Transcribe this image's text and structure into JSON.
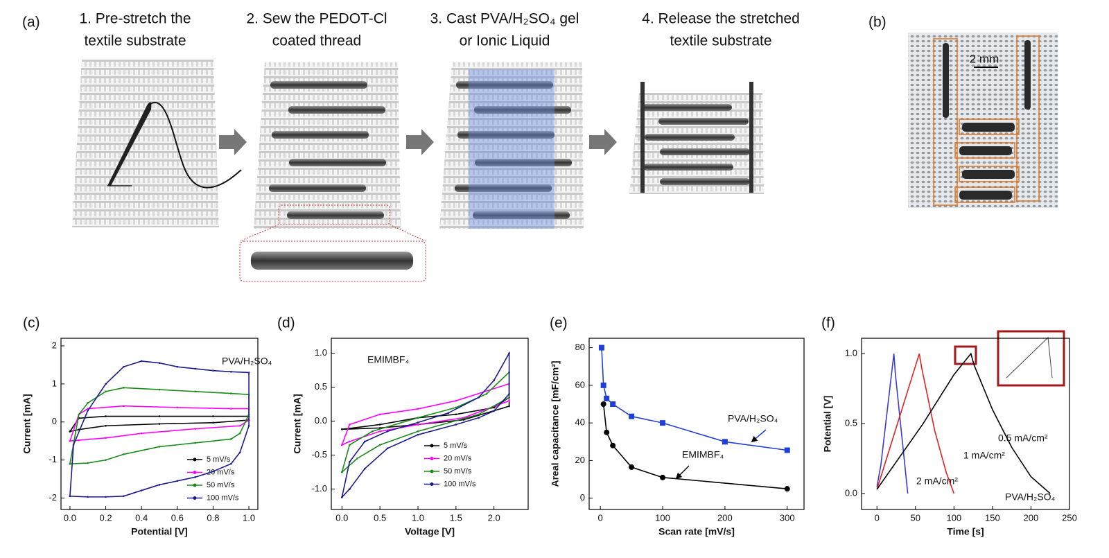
{
  "panel_labels": [
    "(a)",
    "(b)",
    "(c)",
    "(d)",
    "(e)",
    "(f)"
  ],
  "steps": [
    {
      "lines": [
        "1. Pre-stretch the",
        "textile substrate"
      ]
    },
    {
      "lines": [
        "2. Sew the PEDOT-Cl",
        "coated thread"
      ]
    },
    {
      "lines": [
        "3. Cast PVA/H₂SO₄ gel",
        "or Ionic Liquid"
      ]
    },
    {
      "lines": [
        "4. Release the stretched",
        "textile substrate"
      ]
    }
  ],
  "scale_bar": "2 mm",
  "chart_data": [
    {
      "type": "line",
      "xlabel": "Potential [V]",
      "ylabel": "Current [mA]",
      "annotation": "PVA/H₂SO₄",
      "legend": "lower right",
      "xlim": [
        -0.05,
        1.05
      ],
      "ylim": [
        -2.3,
        2.2
      ],
      "xticks": [
        {
          "value": 0,
          "label": "0.0"
        },
        {
          "value": 0.2,
          "label": "0.2"
        },
        {
          "value": 0.4,
          "label": "0.4"
        },
        {
          "value": 0.6,
          "label": "0.6"
        },
        {
          "value": 0.8,
          "label": "0.8"
        },
        {
          "value": 1,
          "label": "1.0"
        }
      ],
      "yticks": [
        -2,
        -1,
        0,
        1,
        2
      ],
      "series": [
        {
          "name": "5 mV/s",
          "color": "#000000",
          "marker": "dot",
          "x": [
            0,
            0.05,
            0.2,
            0.5,
            0.8,
            1.0,
            1.0,
            0.8,
            0.5,
            0.2,
            0.05,
            0
          ],
          "values": [
            -0.25,
            0.1,
            0.15,
            0.15,
            0.15,
            0.15,
            0.05,
            -0.02,
            -0.05,
            -0.1,
            -0.2,
            -0.25
          ]
        },
        {
          "name": "20 mV/s",
          "color": "#ff00ff",
          "marker": "dot",
          "x": [
            0,
            0.05,
            0.1,
            0.3,
            0.6,
            0.9,
            1.0,
            1.0,
            0.95,
            0.7,
            0.4,
            0.2,
            0.05,
            0
          ],
          "values": [
            -0.5,
            0.2,
            0.35,
            0.42,
            0.38,
            0.35,
            0.35,
            0.05,
            -0.1,
            -0.18,
            -0.3,
            -0.42,
            -0.48,
            -0.5
          ]
        },
        {
          "name": "50 mV/s",
          "color": "#1a8a1a",
          "marker": "dot",
          "x": [
            0,
            0.05,
            0.1,
            0.2,
            0.3,
            0.5,
            0.7,
            0.9,
            1.0,
            1.0,
            0.95,
            0.9,
            0.7,
            0.5,
            0.3,
            0.2,
            0.1,
            0
          ],
          "values": [
            -1.1,
            0.2,
            0.5,
            0.8,
            0.9,
            0.85,
            0.8,
            0.75,
            0.72,
            0.2,
            -0.3,
            -0.45,
            -0.55,
            -0.65,
            -0.85,
            -1.0,
            -1.08,
            -1.1
          ]
        },
        {
          "name": "100 mV/s",
          "color": "#1a1a8c",
          "marker": "dot",
          "x": [
            0,
            0.02,
            0.1,
            0.2,
            0.3,
            0.4,
            0.5,
            0.6,
            0.7,
            0.8,
            0.9,
            1.0,
            1.0,
            0.95,
            0.9,
            0.8,
            0.7,
            0.6,
            0.5,
            0.4,
            0.3,
            0.2,
            0.1,
            0
          ],
          "values": [
            -1.95,
            -0.6,
            0.3,
            1.0,
            1.45,
            1.6,
            1.55,
            1.45,
            1.4,
            1.35,
            1.32,
            1.3,
            -0.1,
            -0.8,
            -1.1,
            -1.3,
            -1.45,
            -1.55,
            -1.65,
            -1.8,
            -1.95,
            -1.97,
            -1.97,
            -1.95
          ]
        }
      ]
    },
    {
      "type": "line",
      "xlabel": "Voltage [V]",
      "ylabel": "Current [mA]",
      "annotation": "EMIMBF₄",
      "legend": "lower right",
      "xlim": [
        -0.14,
        2.45
      ],
      "ylim": [
        -1.3,
        1.22
      ],
      "xticks": [
        {
          "value": 0,
          "label": "0.0"
        },
        {
          "value": 0.5,
          "label": "0.5"
        },
        {
          "value": 1,
          "label": "1.0"
        },
        {
          "value": 1.5,
          "label": "1.5"
        },
        {
          "value": 2,
          "label": "2.0"
        }
      ],
      "yticks": [
        {
          "value": -1,
          "label": "-1.0"
        },
        {
          "value": -0.5,
          "label": "-0.5"
        },
        {
          "value": 0,
          "label": "0.0"
        },
        0.5,
        {
          "value": 1,
          "label": "1.0"
        }
      ],
      "series": [
        {
          "name": "5 mV/s",
          "color": "#000000",
          "marker": "dot",
          "x": [
            0,
            0.5,
            1.0,
            1.5,
            2.0,
            2.2,
            2.2,
            1.6,
            1.0,
            0.5,
            0
          ],
          "values": [
            -0.12,
            -0.05,
            0.05,
            0.1,
            0.2,
            0.35,
            0.22,
            0.02,
            -0.05,
            -0.1,
            -0.12
          ]
        },
        {
          "name": "20 mV/s",
          "color": "#ff00ff",
          "marker": "dot",
          "x": [
            0,
            0.1,
            0.5,
            1.0,
            1.5,
            2.2,
            2.2,
            1.6,
            1.0,
            0.5,
            0.1,
            0
          ],
          "values": [
            -0.35,
            -0.05,
            0.1,
            0.18,
            0.3,
            0.55,
            0.3,
            0.05,
            -0.05,
            -0.15,
            -0.3,
            -0.35
          ]
        },
        {
          "name": "50 mV/s",
          "color": "#1a8a1a",
          "marker": "dot",
          "x": [
            0,
            0.1,
            0.4,
            1.0,
            1.5,
            1.9,
            2.2,
            2.2,
            1.8,
            1.0,
            0.5,
            0.2,
            0
          ],
          "values": [
            -0.75,
            -0.35,
            -0.15,
            0.05,
            0.2,
            0.4,
            0.72,
            0.35,
            0.1,
            -0.15,
            -0.35,
            -0.55,
            -0.75
          ]
        },
        {
          "name": "100 mV/s",
          "color": "#1a1a8c",
          "marker": "dot",
          "x": [
            0,
            0.1,
            0.3,
            0.6,
            1.0,
            1.4,
            1.8,
            2.0,
            2.2,
            2.2,
            2.0,
            1.8,
            1.5,
            1.0,
            0.6,
            0.3,
            0.1,
            0
          ],
          "values": [
            -1.12,
            -0.6,
            -0.3,
            -0.15,
            -0.02,
            0.12,
            0.35,
            0.6,
            1.0,
            0.4,
            0.15,
            0.05,
            -0.05,
            -0.2,
            -0.4,
            -0.7,
            -1.0,
            -1.12
          ]
        }
      ]
    },
    {
      "type": "line",
      "xlabel": "Scan rate [mV/s]",
      "ylabel": "Areal capacitance [mF/cm²]",
      "legend": false,
      "xlim": [
        -18,
        327
      ],
      "ylim": [
        -6,
        85
      ],
      "xticks": [
        0,
        100,
        200,
        300
      ],
      "yticks": [
        0,
        20,
        40,
        60,
        80
      ],
      "series": [
        {
          "name": "PVA/H₂SO₄",
          "color": "#1f3fd6",
          "marker": "square",
          "x": [
            2,
            5,
            10,
            20,
            50,
            100,
            200,
            300
          ],
          "values": [
            80,
            60,
            53,
            50,
            43.5,
            40,
            30,
            25.5
          ]
        },
        {
          "name": "EMIMBF₄",
          "color": "#000000",
          "marker": "circle",
          "x": [
            5,
            10,
            20,
            50,
            100,
            300
          ],
          "values": [
            50,
            35,
            28,
            16.5,
            11,
            5
          ]
        }
      ]
    },
    {
      "type": "line",
      "xlabel": "Time [s]",
      "ylabel": "Potential [V]",
      "annotation": "PVA/H₂SO₄",
      "legend": false,
      "xlim": [
        -20,
        250
      ],
      "ylim": [
        -0.114,
        1.11
      ],
      "xticks": [
        0,
        50,
        100,
        150,
        200,
        250
      ],
      "yticks": [
        {
          "value": 0,
          "label": "0.0"
        },
        0.5,
        {
          "value": 1,
          "label": "1.0"
        }
      ],
      "series": [
        {
          "name": "2 mA/cm²",
          "color": "#3a3acc",
          "x": [
            0,
            5,
            22,
            24,
            40
          ],
          "values": [
            0.05,
            0.2,
            1.0,
            0.85,
            0
          ]
        },
        {
          "name": "1 mA/cm²",
          "color": "#e02020",
          "x": [
            0,
            55,
            58,
            75,
            90,
            100
          ],
          "values": [
            0.03,
            1.0,
            0.9,
            0.45,
            0.15,
            0
          ]
        },
        {
          "name": "0.5 mA/cm²",
          "color": "#000000",
          "x": [
            0,
            60,
            100,
            122,
            126,
            150,
            175,
            200,
            225
          ],
          "values": [
            0.03,
            0.5,
            0.85,
            1.0,
            0.92,
            0.6,
            0.33,
            0.12,
            0
          ]
        }
      ]
    }
  ]
}
